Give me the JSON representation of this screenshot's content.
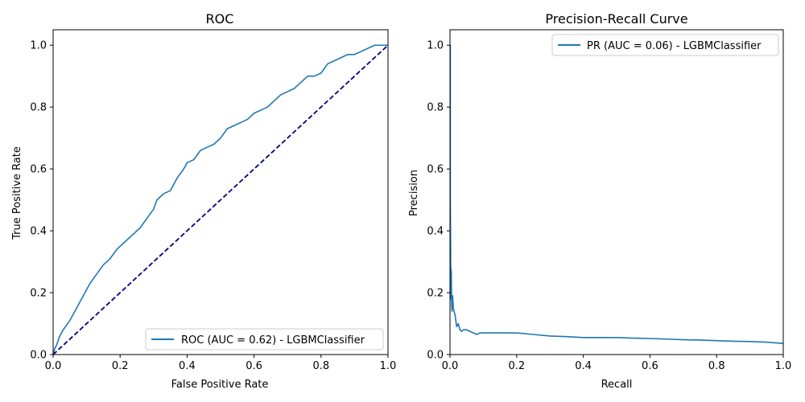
{
  "chart_data": [
    {
      "type": "line",
      "title": "ROC",
      "xlabel": "False Positive Rate",
      "ylabel": "True Positive Rate",
      "xlim": [
        0.0,
        1.0
      ],
      "ylim": [
        0.0,
        1.05
      ],
      "xticks": [
        "0.0",
        "0.2",
        "0.4",
        "0.6",
        "0.8",
        "1.0"
      ],
      "yticks": [
        "0.0",
        "0.2",
        "0.4",
        "0.6",
        "0.8",
        "1.0"
      ],
      "grid": false,
      "legend_position": "lower-right",
      "series": [
        {
          "name": "ROC (AUC = 0.62) - LGBMClassifier",
          "color": "#1f77b4",
          "style": "solid",
          "x": [
            0.0,
            0.005,
            0.01,
            0.02,
            0.03,
            0.05,
            0.07,
            0.09,
            0.11,
            0.13,
            0.15,
            0.17,
            0.19,
            0.2,
            0.22,
            0.24,
            0.26,
            0.28,
            0.3,
            0.31,
            0.33,
            0.35,
            0.37,
            0.39,
            0.4,
            0.42,
            0.44,
            0.46,
            0.48,
            0.5,
            0.52,
            0.54,
            0.56,
            0.58,
            0.6,
            0.62,
            0.64,
            0.66,
            0.68,
            0.7,
            0.72,
            0.74,
            0.76,
            0.78,
            0.8,
            0.82,
            0.84,
            0.86,
            0.88,
            0.9,
            0.92,
            0.94,
            0.96,
            0.98,
            1.0
          ],
          "y": [
            0.0,
            0.02,
            0.03,
            0.06,
            0.08,
            0.11,
            0.15,
            0.19,
            0.23,
            0.26,
            0.29,
            0.31,
            0.34,
            0.35,
            0.37,
            0.39,
            0.41,
            0.44,
            0.47,
            0.5,
            0.52,
            0.53,
            0.57,
            0.6,
            0.62,
            0.63,
            0.66,
            0.67,
            0.68,
            0.7,
            0.73,
            0.74,
            0.75,
            0.76,
            0.78,
            0.79,
            0.8,
            0.82,
            0.84,
            0.85,
            0.86,
            0.88,
            0.9,
            0.9,
            0.91,
            0.94,
            0.95,
            0.96,
            0.97,
            0.97,
            0.98,
            0.99,
            1.0,
            1.0,
            1.0
          ]
        },
        {
          "name": "",
          "color": "#000080",
          "style": "dashed",
          "x": [
            0.0,
            1.0
          ],
          "y": [
            0.0,
            1.0
          ]
        }
      ]
    },
    {
      "type": "line",
      "title": "Precision-Recall Curve",
      "xlabel": "Recall",
      "ylabel": "Precision",
      "xlim": [
        0.0,
        1.0
      ],
      "ylim": [
        0.0,
        1.05
      ],
      "xticks": [
        "0.0",
        "0.2",
        "0.4",
        "0.6",
        "0.8",
        "1.0"
      ],
      "yticks": [
        "0.0",
        "0.2",
        "0.4",
        "0.6",
        "0.8",
        "1.0"
      ],
      "grid": false,
      "legend_position": "upper-right",
      "series": [
        {
          "name": "PR (AUC = 0.06) - LGBMClassifier",
          "color": "#1f77b4",
          "style": "solid",
          "x": [
            0.0,
            0.001,
            0.001,
            0.002,
            0.002,
            0.003,
            0.003,
            0.004,
            0.004,
            0.005,
            0.006,
            0.008,
            0.01,
            0.012,
            0.015,
            0.02,
            0.025,
            0.03,
            0.035,
            0.04,
            0.05,
            0.06,
            0.07,
            0.08,
            0.09,
            0.1,
            0.15,
            0.2,
            0.25,
            0.3,
            0.35,
            0.4,
            0.45,
            0.5,
            0.55,
            0.6,
            0.65,
            0.7,
            0.75,
            0.8,
            0.85,
            0.9,
            0.95,
            1.0
          ],
          "y": [
            1.0,
            1.0,
            0.5,
            0.33,
            0.2,
            0.28,
            0.18,
            0.24,
            0.27,
            0.16,
            0.14,
            0.19,
            0.15,
            0.14,
            0.13,
            0.09,
            0.1,
            0.08,
            0.075,
            0.08,
            0.08,
            0.075,
            0.07,
            0.065,
            0.07,
            0.07,
            0.07,
            0.07,
            0.065,
            0.06,
            0.058,
            0.055,
            0.055,
            0.055,
            0.053,
            0.052,
            0.05,
            0.048,
            0.047,
            0.045,
            0.043,
            0.042,
            0.04,
            0.036
          ]
        }
      ]
    }
  ]
}
